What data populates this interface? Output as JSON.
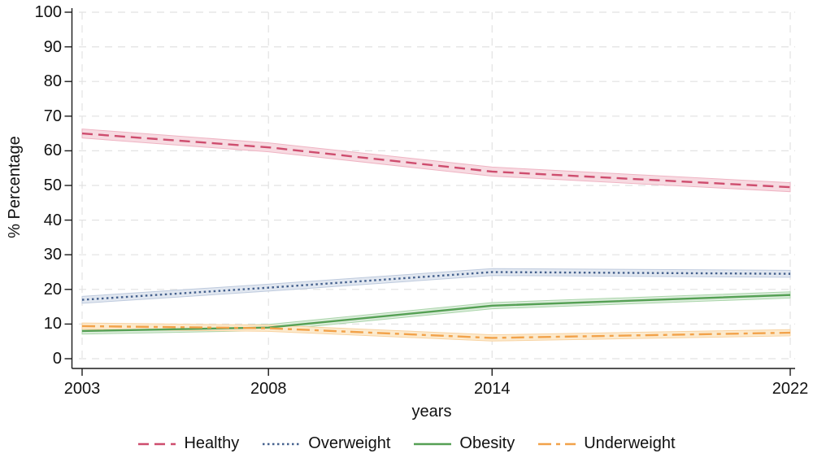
{
  "chart_data": {
    "type": "line",
    "title": "",
    "xlabel": "years",
    "ylabel": "% Percentage",
    "x": [
      2003,
      2008,
      2014,
      2022
    ],
    "xticks": [
      2003,
      2008,
      2014,
      2022
    ],
    "yticks": [
      0,
      10,
      20,
      30,
      40,
      50,
      60,
      70,
      80,
      90,
      100
    ],
    "xlim": [
      2003,
      2022
    ],
    "ylim": [
      0,
      100
    ],
    "grid": "dashed light gray, horizontal and vertical",
    "legend_position": "bottom",
    "grid_color": "#e2e2e2",
    "axis_color": "#1a1a1a",
    "series": [
      {
        "name": "Healthy",
        "line_style": "dashed",
        "color": "#ce4d6e",
        "band_color": "#f7dae1",
        "band_edge_color": "#efb4c3",
        "values": [
          65,
          61,
          54,
          49.5
        ],
        "ci_halfwidth": 1.3
      },
      {
        "name": "Overweight",
        "line_style": "dotted",
        "color": "#44608d",
        "band_color": "#e1e7f0",
        "band_edge_color": "#bfcbde",
        "values": [
          17,
          20.5,
          25,
          24.5
        ],
        "ci_halfwidth": 1.0
      },
      {
        "name": "Obesity",
        "line_style": "solid",
        "color": "#55a054",
        "band_color": "#dbeddb",
        "band_edge_color": "#abd5ab",
        "values": [
          8,
          9,
          15.3,
          18.4
        ],
        "ci_halfwidth": 0.9
      },
      {
        "name": "Underweight",
        "line_style": "dash-dot",
        "color": "#f2a24a",
        "band_color": "#fceacd",
        "band_edge_color": "#f8d3a2",
        "values": [
          9.4,
          8.8,
          6,
          7.5
        ],
        "ci_halfwidth": 0.9
      }
    ]
  }
}
